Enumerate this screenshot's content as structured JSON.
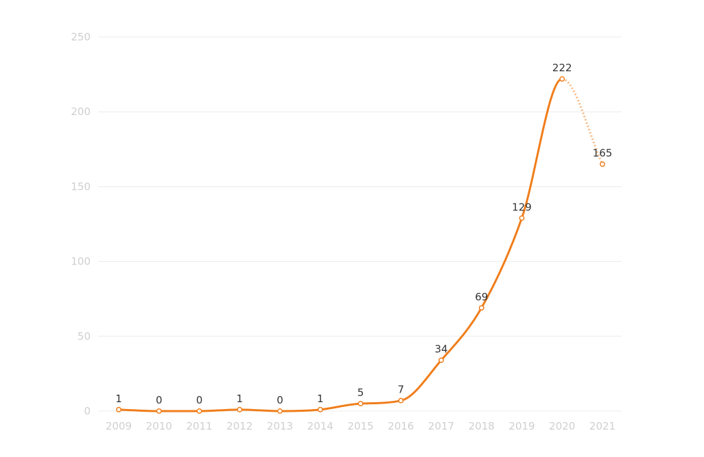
{
  "chart_data": {
    "type": "line",
    "title": "",
    "xlabel": "",
    "ylabel": "",
    "ylim": [
      0,
      250
    ],
    "yticks": [
      0,
      50,
      100,
      150,
      200,
      250
    ],
    "grid": true,
    "categories": [
      "2009",
      "2010",
      "2011",
      "2012",
      "2013",
      "2014",
      "2015",
      "2016",
      "2017",
      "2018",
      "2019",
      "2020",
      "2021"
    ],
    "series": [
      {
        "name": "count",
        "values": [
          1,
          0,
          0,
          1,
          0,
          1,
          5,
          7,
          34,
          69,
          129,
          222,
          165
        ],
        "color": "#f07d1a",
        "dashed_from_index": 11
      }
    ],
    "data_labels": [
      "1",
      "0",
      "0",
      "1",
      "0",
      "1",
      "5",
      "7",
      "34",
      "69",
      "129",
      "222",
      "165"
    ]
  }
}
